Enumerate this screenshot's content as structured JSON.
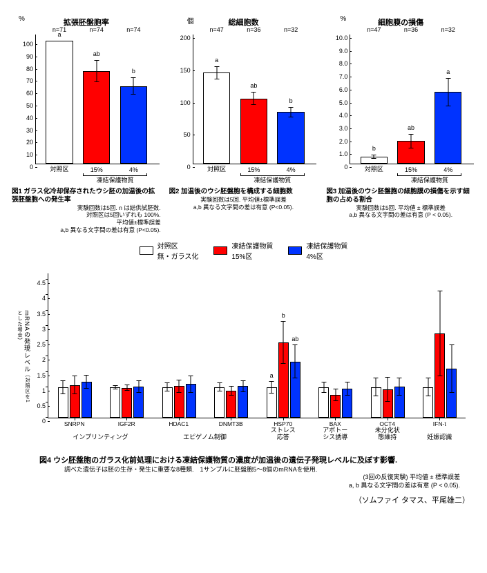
{
  "colors": {
    "control": "#ffffff",
    "series15": "#ff0000",
    "series4": "#0033ff",
    "border": "#000000",
    "background": "#ffffff"
  },
  "top": {
    "panels": [
      {
        "id": "fig1",
        "y_unit": "%",
        "title": "拡張胚盤胞率",
        "y_max": 105,
        "y_ticks": [
          0,
          10,
          20,
          30,
          40,
          50,
          60,
          70,
          80,
          90,
          100
        ],
        "n": [
          "n=71",
          "n=74",
          "n=74"
        ],
        "sig": [
          "a",
          "ab",
          "b"
        ],
        "values": [
          100,
          75,
          63
        ],
        "errs": [
          0,
          9,
          7
        ],
        "x_labels": [
          "対照区",
          "15%",
          "4%"
        ],
        "x_group_label": "凍結保護物質",
        "bar_colors": [
          "#ffffff",
          "#ff0000",
          "#0033ff"
        ],
        "caption_title": "図1 ガラス化冷却保存されたウシ胚の加温後の拡張胚盤胞への発生率",
        "caption_note": "実験回数は5回. n は総供試胚数.\n対照区は5回いずれも 100%.\n平均値±標準誤差\na,b 異なる文字間の差は有意 (P<0.05)."
      },
      {
        "id": "fig2",
        "y_unit": "個",
        "title": "総細胞数",
        "y_max": 200,
        "y_ticks": [
          0,
          50,
          100,
          150,
          200
        ],
        "n": [
          "n=47",
          "n=36",
          "n=32"
        ],
        "sig": [
          "a",
          "ab",
          "b"
        ],
        "values": [
          141,
          101,
          80
        ],
        "errs": [
          10,
          10,
          8
        ],
        "x_labels": [
          "対照区",
          "15%",
          "4%"
        ],
        "x_group_label": "凍結保護物質",
        "bar_colors": [
          "#ffffff",
          "#ff0000",
          "#0033ff"
        ],
        "caption_title": "図2 加温後のウシ胚盤胞を構成する細胞数",
        "caption_note": "実験回数は5回. 平均値±標準誤差\na,b 異なる文字間の差は有意 (P<0.05)."
      },
      {
        "id": "fig3",
        "y_unit": "%",
        "title": "細胞膜の損傷",
        "y_max": 10,
        "y_ticks": [
          0,
          1.0,
          2.0,
          3.0,
          4.0,
          5.0,
          6.0,
          7.0,
          8.0,
          9.0,
          10.0
        ],
        "n": [
          "n=47",
          "n=36",
          "n=32"
        ],
        "sig": [
          "b",
          "ab",
          "a"
        ],
        "values": [
          0.55,
          1.75,
          5.55
        ],
        "errs": [
          0.15,
          0.55,
          1.1
        ],
        "x_labels": [
          "対照区",
          "15%",
          "4%"
        ],
        "x_group_label": "凍結保護物質",
        "bar_colors": [
          "#ffffff",
          "#ff0000",
          "#0033ff"
        ],
        "caption_title": "図3 加温後のウシ胚盤胞の細胞膜の損傷を示す細胞の占める割合",
        "caption_note": "実験回数は5回. 平均値 ± 標準誤差\na,b 異なる文字間の差は有意 (P < 0.05)."
      }
    ]
  },
  "legend": {
    "items": [
      {
        "swatch": "#ffffff",
        "label_l1": "対照区",
        "label_l2": "無・ガラス化"
      },
      {
        "swatch": "#ff0000",
        "label_l1": "凍結保護物質",
        "label_l2": "15%区"
      },
      {
        "swatch": "#0033ff",
        "label_l1": "凍結保護物質",
        "label_l2": "4%区"
      }
    ]
  },
  "fig4": {
    "y_label": "mRNAの発現レベル",
    "y_label_small": "(対照区を1とした場合)",
    "y_max": 4.7,
    "y_ticks": [
      0,
      0.5,
      1,
      1.5,
      2,
      2.5,
      3,
      3.5,
      4,
      4.5
    ],
    "genes": [
      "SNRPN",
      "IGF2R",
      "HDAC1",
      "DNMT3B",
      "HSP70",
      "BAX",
      "OCT4",
      "IFN-t"
    ],
    "series_colors": [
      "#ffffff",
      "#ff0000",
      "#0033ff"
    ],
    "values": [
      [
        1.0,
        1.07,
        1.17
      ],
      [
        1.0,
        0.98,
        1.02
      ],
      [
        1.0,
        1.03,
        1.1
      ],
      [
        1.0,
        0.88,
        1.03
      ],
      [
        1.0,
        2.45,
        1.83
      ],
      [
        1.0,
        0.75,
        0.95
      ],
      [
        1.0,
        0.93,
        1.02
      ],
      [
        1.0,
        2.75,
        1.6
      ]
    ],
    "errs": [
      [
        0.22,
        0.3,
        0.23
      ],
      [
        0.07,
        0.1,
        0.2
      ],
      [
        0.15,
        0.22,
        0.28
      ],
      [
        0.15,
        0.15,
        0.2
      ],
      [
        0.2,
        0.7,
        0.55
      ],
      [
        0.18,
        0.2,
        0.22
      ],
      [
        0.3,
        0.4,
        0.3
      ],
      [
        0.3,
        1.4,
        0.78
      ]
    ],
    "sig": {
      "HSP70": {
        "a_pos": 0,
        "a": "a",
        "b_pos": 1,
        "b": "b",
        "ab_pos": 2,
        "ab": "ab"
      }
    },
    "categories": [
      {
        "label": "インプリンティング",
        "genes_idx": [
          0,
          1
        ]
      },
      {
        "label": "エピゲノム制御",
        "genes_idx": [
          2,
          3
        ]
      },
      {
        "label": "ストレス\n応答",
        "genes_idx": [
          4
        ]
      },
      {
        "label": "アポトー\nシス誘導",
        "genes_idx": [
          5
        ]
      },
      {
        "label": "未分化状\n態維持",
        "genes_idx": [
          6
        ]
      },
      {
        "label": "妊娠認識",
        "genes_idx": [
          7
        ]
      }
    ],
    "caption_title": "図4 ウシ胚盤胞のガラス化前処理における凍結保護物質の濃度が加温後の遺伝子発現レベルに及ぼす影響.",
    "caption_line1": "調べた遺伝子は胚の生存・発生に重要な8種類.　1サンプルに胚盤胞5〜8個のmRNAを使用.",
    "caption_line2": "(3回の反復実験) 平均値 ± 標準誤差",
    "caption_line3": "a, b 異なる文字間の差は有意 (P < 0.05)."
  },
  "authors": "（ソムファイ タマス、平尾雄二）"
}
